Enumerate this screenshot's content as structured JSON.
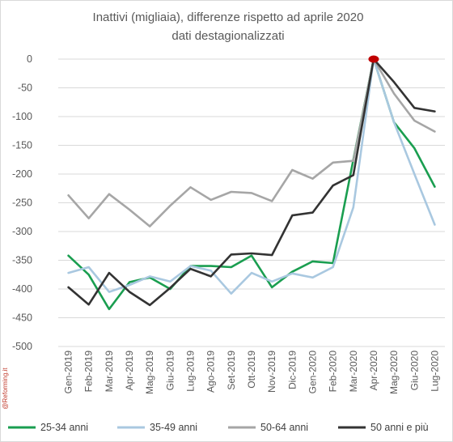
{
  "chart_data": {
    "type": "line",
    "title": "Inattivi (migliaia), differenze rispetto ad aprile 2020",
    "subtitle": "dati destagionalizzati",
    "watermark": "@Reforming.it",
    "xlabel": "",
    "ylabel": "",
    "ylim": [
      -500,
      0
    ],
    "yticks": [
      0,
      -50,
      -100,
      -150,
      -200,
      -250,
      -300,
      -350,
      -400,
      -450,
      -500
    ],
    "ytick_labels": [
      "0",
      "-50",
      "-100",
      "-150",
      "-200",
      "-250",
      "-300",
      "-350",
      "-400",
      "-450",
      "-500"
    ],
    "grid": "horizontal",
    "legend_position": "bottom",
    "categories": [
      "Gen-2019",
      "Feb-2019",
      "Mar-2019",
      "Apr-2019",
      "Mag-2019",
      "Giu-2019",
      "Lug-2019",
      "Ago-2019",
      "Set-2019",
      "Ott-2019",
      "Nov-2019",
      "Dic-2019",
      "Gen-2020",
      "Feb-2020",
      "Mar-2020",
      "Apr-2020",
      "Mag-2020",
      "Giu-2020",
      "Lug-2020"
    ],
    "series": [
      {
        "name": "25-34 anni",
        "color": "#1a9e50",
        "values": [
          -342,
          -375,
          -435,
          -388,
          -380,
          -400,
          -360,
          -360,
          -362,
          -342,
          -397,
          -370,
          -352,
          -355,
          -175,
          0,
          -110,
          -155,
          -222
        ]
      },
      {
        "name": "35-49 anni",
        "color": "#a9c8e0",
        "values": [
          -372,
          -362,
          -405,
          -393,
          -378,
          -387,
          -360,
          -368,
          -408,
          -372,
          -387,
          -373,
          -380,
          -362,
          -258,
          0,
          -110,
          -200,
          -288
        ]
      },
      {
        "name": "50-64 anni",
        "color": "#a6a6a6",
        "values": [
          -237,
          -277,
          -235,
          -262,
          -291,
          -255,
          -223,
          -245,
          -231,
          -233,
          -247,
          -193,
          -208,
          -180,
          -177,
          0,
          -60,
          -107,
          -126
        ]
      },
      {
        "name": "50 anni e più",
        "color": "#333333",
        "values": [
          -397,
          -427,
          -372,
          -405,
          -428,
          -398,
          -365,
          -378,
          -340,
          -338,
          -341,
          -272,
          -267,
          -220,
          -202,
          0,
          -40,
          -85,
          -91
        ]
      }
    ],
    "marker": {
      "category": "Apr-2020",
      "value": 0,
      "color": "#c00000"
    }
  }
}
